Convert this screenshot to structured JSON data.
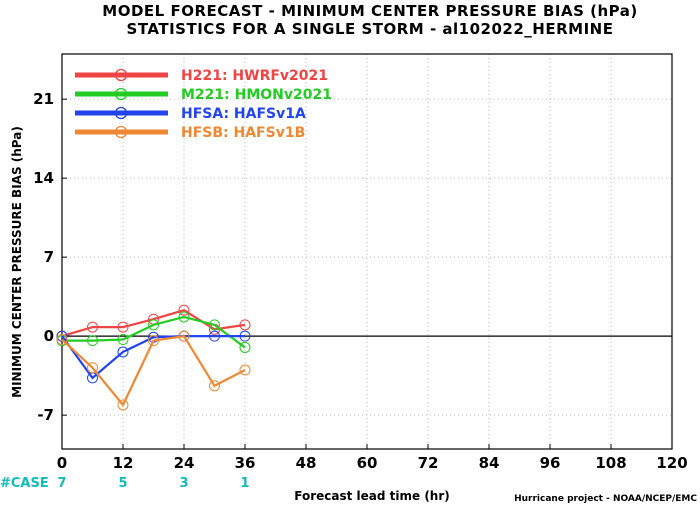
{
  "chart_data": {
    "type": "line",
    "title": "MODEL FORECAST - MINIMUM CENTER PRESSURE BIAS (hPa)",
    "subtitle": "STATISTICS FOR A SINGLE STORM - al102022_HERMINE",
    "xlabel": "Forecast lead time (hr)",
    "ylabel": "MINIMUM CENTER PRESSURE BIAS (hPa)",
    "xlim": [
      0,
      120
    ],
    "ylim": [
      -10,
      25
    ],
    "xticks": [
      0,
      12,
      24,
      36,
      48,
      60,
      72,
      84,
      96,
      108,
      120
    ],
    "yticks": [
      -7,
      0,
      7,
      14,
      21
    ],
    "grid": true,
    "legend_position": "top-left",
    "series": [
      {
        "name": "H221: HWRFv2021",
        "color": "#ee4444",
        "x": [
          0,
          6,
          12,
          18,
          24,
          30,
          36
        ],
        "y": [
          0.0,
          0.8,
          0.8,
          1.5,
          2.3,
          0.6,
          1.0
        ]
      },
      {
        "name": "M221: HMONv2021",
        "color": "#22cc22",
        "x": [
          0,
          6,
          12,
          18,
          24,
          30,
          36
        ],
        "y": [
          -0.4,
          -0.4,
          -0.3,
          1.0,
          1.7,
          1.0,
          -1.0
        ]
      },
      {
        "name": "HFSA: HAFSv1A",
        "color": "#2244ee",
        "x": [
          0,
          6,
          12,
          18,
          24,
          30,
          36
        ],
        "y": [
          0.0,
          -3.7,
          -1.4,
          -0.1,
          0.0,
          0.0,
          0.0
        ]
      },
      {
        "name": "HFSB: HAFSv1B",
        "color": "#ee8833",
        "x": [
          0,
          6,
          12,
          18,
          24,
          30,
          36
        ],
        "y": [
          -0.3,
          -2.8,
          -6.1,
          -0.4,
          0.0,
          -4.4,
          -3.0
        ]
      }
    ],
    "cases": {
      "label": "#CASE",
      "color": "#11bbbb",
      "x": [
        0,
        12,
        24,
        36
      ],
      "values": [
        "7",
        "5",
        "3",
        "1"
      ]
    },
    "credit": "Hurricane project - NOAA/NCEP/EMC"
  }
}
